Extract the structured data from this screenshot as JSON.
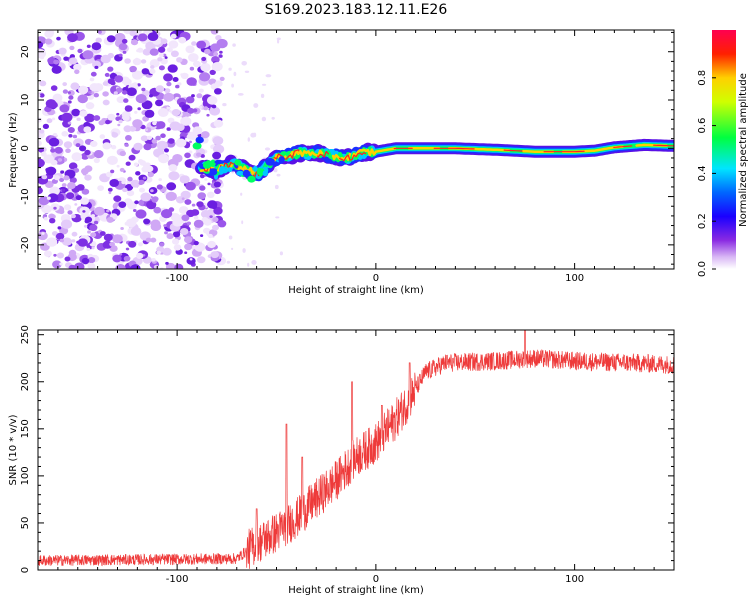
{
  "title": "S169.2023.183.12.11.E26",
  "chart_data": [
    {
      "type": "heatmap",
      "xlabel": "Height of straight line (km)",
      "ylabel": "Frequency (Hz)",
      "xlim": [
        -170,
        150
      ],
      "ylim": [
        -25,
        24.5
      ],
      "xticks": [
        -100,
        0,
        100
      ],
      "yticks": [
        -20,
        -10,
        0,
        10,
        20
      ],
      "colorbar": {
        "label": "Normalized spectral amplitude",
        "ticks": [
          "0.0",
          "0.2",
          "0.4",
          "0.6",
          "0.8"
        ],
        "range": [
          0,
          1
        ]
      },
      "noise_region_end_km": -77,
      "ridge": [
        {
          "x": -88,
          "y": -4
        },
        {
          "x": -80,
          "y": -4.5
        },
        {
          "x": -72,
          "y": -3
        },
        {
          "x": -65,
          "y": -4.5
        },
        {
          "x": -60,
          "y": -5.5
        },
        {
          "x": -55,
          "y": -3.5
        },
        {
          "x": -50,
          "y": -2
        },
        {
          "x": -44,
          "y": -1.5
        },
        {
          "x": -38,
          "y": -1
        },
        {
          "x": -30,
          "y": -1
        },
        {
          "x": -22,
          "y": -1.5
        },
        {
          "x": -15,
          "y": -2
        },
        {
          "x": -8,
          "y": -1
        },
        {
          "x": 0,
          "y": -0.7
        },
        {
          "x": 10,
          "y": 0
        },
        {
          "x": 20,
          "y": 0
        },
        {
          "x": 40,
          "y": 0
        },
        {
          "x": 60,
          "y": -0.3
        },
        {
          "x": 80,
          "y": -0.7
        },
        {
          "x": 100,
          "y": -0.7
        },
        {
          "x": 110,
          "y": -0.5
        },
        {
          "x": 120,
          "y": 0.2
        },
        {
          "x": 135,
          "y": 0.7
        },
        {
          "x": 150,
          "y": 0.5
        }
      ]
    },
    {
      "type": "line",
      "xlabel": "Height of straight line (km)",
      "ylabel": "SNR (10 * v/v)",
      "xlim": [
        -170,
        150
      ],
      "ylim": [
        0,
        255
      ],
      "xticks": [
        -100,
        0,
        100
      ],
      "yticks": [
        0,
        50,
        100,
        150,
        200,
        250
      ],
      "series": [
        {
          "name": "SNR",
          "color": "#ee3a3a",
          "envelope": [
            {
              "x": -170,
              "y": 10
            },
            {
              "x": -70,
              "y": 12
            },
            {
              "x": -62,
              "y": 25
            },
            {
              "x": -50,
              "y": 40
            },
            {
              "x": -40,
              "y": 55
            },
            {
              "x": -30,
              "y": 75
            },
            {
              "x": -20,
              "y": 95
            },
            {
              "x": -10,
              "y": 120
            },
            {
              "x": 0,
              "y": 135
            },
            {
              "x": 10,
              "y": 160
            },
            {
              "x": 18,
              "y": 185
            },
            {
              "x": 25,
              "y": 210
            },
            {
              "x": 35,
              "y": 220
            },
            {
              "x": 60,
              "y": 222
            },
            {
              "x": 80,
              "y": 225
            },
            {
              "x": 100,
              "y": 222
            },
            {
              "x": 130,
              "y": 220
            },
            {
              "x": 150,
              "y": 218
            }
          ],
          "spikes": [
            {
              "x": -60,
              "y": 65
            },
            {
              "x": -45,
              "y": 155
            },
            {
              "x": -37,
              "y": 120
            },
            {
              "x": -12,
              "y": 200
            },
            {
              "x": 3,
              "y": 175
            },
            {
              "x": 17,
              "y": 220
            },
            {
              "x": 75,
              "y": 257
            }
          ]
        }
      ]
    }
  ]
}
